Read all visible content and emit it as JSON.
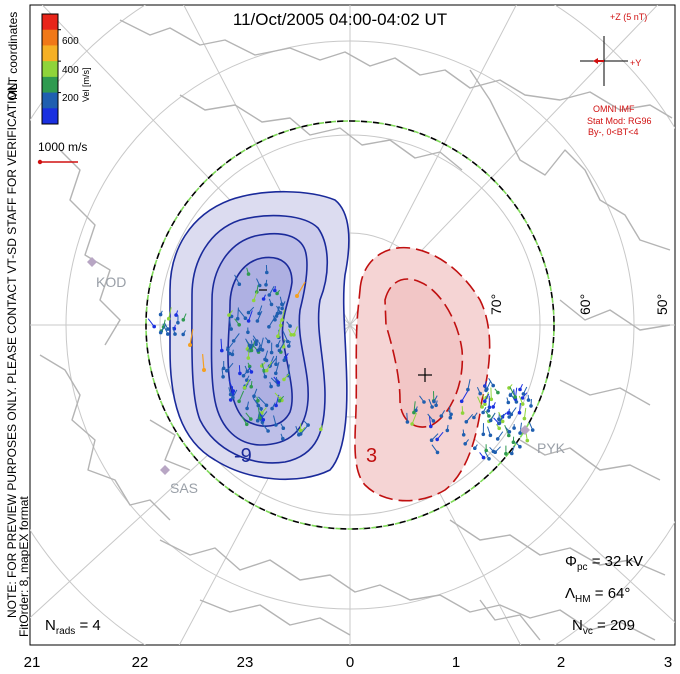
{
  "title": "11/Oct/2005 04:00-04:02 UT",
  "note_line1": "NOTE: FOR PREVIEW PURPOSES ONLY. PLEASE CONTACT VT-SD STAFF FOR VERIFICATION.",
  "note_line2": "FitOrder: 8, mapEX format",
  "coords_label": "MLT coordinates",
  "colorbar": {
    "label": "Vel [m/s]",
    "ticks": [
      "600",
      "400",
      "200"
    ],
    "colors": [
      "#e8251a",
      "#f07818",
      "#f5b025",
      "#8fd43a",
      "#2f9a50",
      "#1f5fb0",
      "#1a30e0"
    ]
  },
  "vector_scale": "1000 m/s",
  "imf": {
    "z_label": "+Z (5 nT)",
    "y_label": "+Y",
    "source": "OMNI IMF",
    "model": "Stat Mod: RG96",
    "condition": "By-, 0<BT<4"
  },
  "stats": {
    "phi_symbol": "Φ",
    "phi_sub": "pc",
    "phi_value": "= 32 kV",
    "lambda_symbol": "Λ",
    "lambda_sub": "HM",
    "lambda_value": "= 64°",
    "nvc_symbol": "N",
    "nvc_sub": "vc",
    "nvc_value": "= 209",
    "nrads_symbol": "N",
    "nrads_sub": "rads",
    "nrads_value": "= 4"
  },
  "mlt_labels": [
    "21",
    "22",
    "23",
    "0",
    "1",
    "2",
    "3"
  ],
  "lat_labels": [
    "70°",
    "60°",
    "50°"
  ],
  "radar_sites": [
    "KOD",
    "SAS",
    "PYK"
  ],
  "contour_labels": {
    "negative": "-9",
    "positive": "3"
  },
  "colors": {
    "negative_fill": "#c8cbec",
    "negative_line": "#1a2a9a",
    "positive_fill": "#f5d4d4",
    "positive_line": "#c01010",
    "grid": "#c8c8c8",
    "coast": "#b4b4b4",
    "boundary_dash": "#7ed957",
    "vector": "#1f5fb0"
  }
}
